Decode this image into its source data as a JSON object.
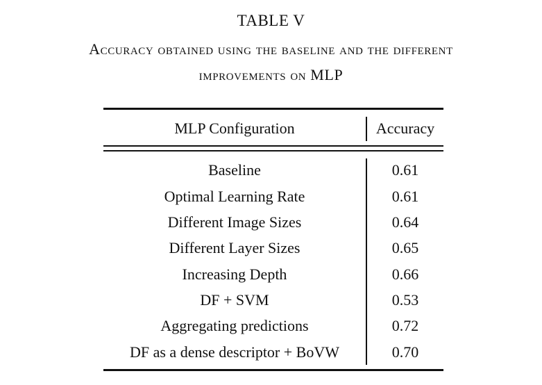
{
  "table": {
    "number": "TABLE V",
    "caption_line1": "Accuracy obtained using the baseline and the different",
    "caption_line2": "improvements on MLP",
    "headers": {
      "config": "MLP Configuration",
      "accuracy": "Accuracy"
    },
    "rows": [
      {
        "config": "Baseline",
        "accuracy": "0.61"
      },
      {
        "config": "Optimal Learning Rate",
        "accuracy": "0.61"
      },
      {
        "config": "Different Image Sizes",
        "accuracy": "0.64"
      },
      {
        "config": "Different Layer Sizes",
        "accuracy": "0.65"
      },
      {
        "config": "Increasing Depth",
        "accuracy": "0.66"
      },
      {
        "config": "DF + SVM",
        "accuracy": "0.53"
      },
      {
        "config": "Aggregating predictions",
        "accuracy": "0.72"
      },
      {
        "config": "DF as a dense descriptor + BoVW",
        "accuracy": "0.70"
      }
    ]
  }
}
